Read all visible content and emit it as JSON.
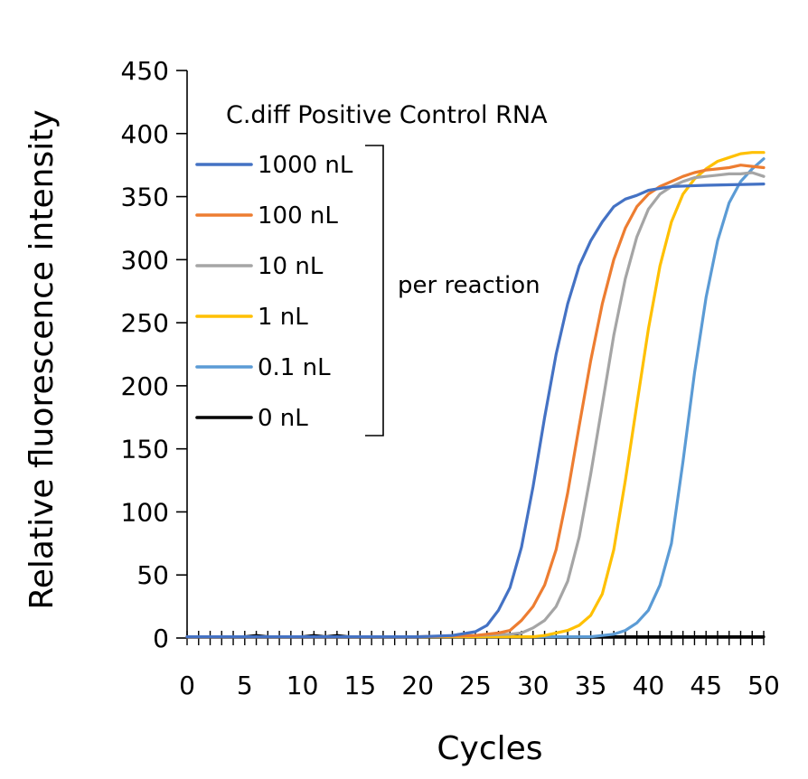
{
  "chart_data": {
    "type": "line",
    "title": "C.diff Positive Control RNA",
    "xlabel": "Cycles",
    "ylabel": "Relative fluorescence intensity",
    "xlim": [
      0,
      50
    ],
    "ylim": [
      0,
      450
    ],
    "x_ticks": [
      "0",
      "5",
      "10",
      "15",
      "20",
      "25",
      "30",
      "35",
      "40",
      "45",
      "50"
    ],
    "y_ticks": [
      "0",
      "50",
      "100",
      "150",
      "200",
      "250",
      "300",
      "350",
      "400",
      "450"
    ],
    "legend_position": "top-left",
    "grid": false,
    "bracket_label": "per reaction",
    "series": [
      {
        "name": "1000 nL",
        "color": "#4472C4",
        "points": [
          [
            0,
            1
          ],
          [
            5,
            1
          ],
          [
            10,
            1
          ],
          [
            15,
            1
          ],
          [
            20,
            1
          ],
          [
            23,
            2
          ],
          [
            25,
            5
          ],
          [
            26,
            10
          ],
          [
            27,
            22
          ],
          [
            28,
            40
          ],
          [
            29,
            72
          ],
          [
            30,
            120
          ],
          [
            31,
            175
          ],
          [
            32,
            225
          ],
          [
            33,
            265
          ],
          [
            34,
            295
          ],
          [
            35,
            315
          ],
          [
            36,
            330
          ],
          [
            37,
            342
          ],
          [
            38,
            348
          ],
          [
            39,
            351
          ],
          [
            40,
            355
          ],
          [
            42,
            358
          ],
          [
            45,
            359
          ],
          [
            50,
            360
          ]
        ]
      },
      {
        "name": "100 nL",
        "color": "#ED7D31",
        "points": [
          [
            0,
            1
          ],
          [
            5,
            1
          ],
          [
            10,
            1
          ],
          [
            15,
            1
          ],
          [
            20,
            1
          ],
          [
            25,
            2
          ],
          [
            27,
            4
          ],
          [
            28,
            6
          ],
          [
            29,
            14
          ],
          [
            30,
            25
          ],
          [
            31,
            42
          ],
          [
            32,
            70
          ],
          [
            33,
            115
          ],
          [
            34,
            168
          ],
          [
            35,
            220
          ],
          [
            36,
            265
          ],
          [
            37,
            300
          ],
          [
            38,
            325
          ],
          [
            39,
            342
          ],
          [
            40,
            352
          ],
          [
            41,
            358
          ],
          [
            42,
            362
          ],
          [
            43,
            366
          ],
          [
            44,
            369
          ],
          [
            45,
            371
          ],
          [
            46,
            372
          ],
          [
            47,
            373
          ],
          [
            48,
            375
          ],
          [
            49,
            374
          ],
          [
            50,
            373
          ]
        ]
      },
      {
        "name": "10 nL",
        "color": "#A5A5A5",
        "points": [
          [
            0,
            1
          ],
          [
            5,
            1
          ],
          [
            10,
            1
          ],
          [
            15,
            1
          ],
          [
            20,
            1
          ],
          [
            25,
            2
          ],
          [
            28,
            3
          ],
          [
            29,
            4
          ],
          [
            30,
            8
          ],
          [
            31,
            14
          ],
          [
            32,
            25
          ],
          [
            33,
            45
          ],
          [
            34,
            80
          ],
          [
            35,
            130
          ],
          [
            36,
            185
          ],
          [
            37,
            240
          ],
          [
            38,
            285
          ],
          [
            39,
            318
          ],
          [
            40,
            340
          ],
          [
            41,
            352
          ],
          [
            42,
            358
          ],
          [
            43,
            362
          ],
          [
            44,
            365
          ],
          [
            45,
            366
          ],
          [
            46,
            367
          ],
          [
            47,
            368
          ],
          [
            48,
            368
          ],
          [
            49,
            369
          ],
          [
            50,
            366
          ]
        ]
      },
      {
        "name": "1 nL",
        "color": "#FFC000",
        "points": [
          [
            0,
            1
          ],
          [
            5,
            1
          ],
          [
            10,
            1
          ],
          [
            15,
            1
          ],
          [
            20,
            1
          ],
          [
            25,
            1
          ],
          [
            30,
            1
          ],
          [
            31,
            2
          ],
          [
            32,
            4
          ],
          [
            33,
            6
          ],
          [
            34,
            10
          ],
          [
            35,
            18
          ],
          [
            36,
            35
          ],
          [
            37,
            70
          ],
          [
            38,
            125
          ],
          [
            39,
            185
          ],
          [
            40,
            245
          ],
          [
            41,
            295
          ],
          [
            42,
            330
          ],
          [
            43,
            352
          ],
          [
            44,
            364
          ],
          [
            45,
            372
          ],
          [
            46,
            378
          ],
          [
            47,
            381
          ],
          [
            48,
            384
          ],
          [
            49,
            385
          ],
          [
            50,
            385
          ]
        ]
      },
      {
        "name": "0.1 nL",
        "color": "#5B9BD5",
        "points": [
          [
            0,
            1
          ],
          [
            5,
            1
          ],
          [
            10,
            1
          ],
          [
            15,
            1
          ],
          [
            20,
            1
          ],
          [
            25,
            1
          ],
          [
            30,
            1
          ],
          [
            35,
            1
          ],
          [
            36,
            2
          ],
          [
            37,
            3
          ],
          [
            38,
            6
          ],
          [
            39,
            12
          ],
          [
            40,
            22
          ],
          [
            41,
            42
          ],
          [
            42,
            75
          ],
          [
            43,
            140
          ],
          [
            44,
            210
          ],
          [
            45,
            270
          ],
          [
            46,
            315
          ],
          [
            47,
            345
          ],
          [
            48,
            362
          ],
          [
            49,
            372
          ],
          [
            50,
            380
          ]
        ]
      },
      {
        "name": "0 nL",
        "color": "#000000",
        "points": [
          [
            0,
            1
          ],
          [
            5,
            1
          ],
          [
            6,
            2
          ],
          [
            7,
            1
          ],
          [
            8,
            1
          ],
          [
            10,
            1
          ],
          [
            11,
            2
          ],
          [
            12,
            1
          ],
          [
            13,
            2
          ],
          [
            14,
            1
          ],
          [
            15,
            1
          ],
          [
            20,
            1
          ],
          [
            25,
            1
          ],
          [
            27,
            1
          ],
          [
            28,
            2
          ],
          [
            29,
            1
          ],
          [
            30,
            1
          ],
          [
            35,
            1
          ],
          [
            40,
            1
          ],
          [
            45,
            1
          ],
          [
            50,
            1
          ]
        ]
      }
    ]
  }
}
